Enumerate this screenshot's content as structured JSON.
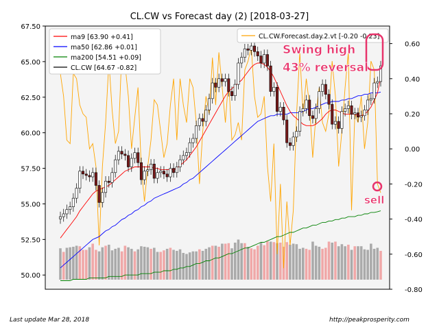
{
  "chart_data": {
    "type": "line",
    "title": "CL.CW vs Forecast day (2)  [2018-03-27]",
    "footer_left": "Last update Mar 28, 2018",
    "footer_right": "http://peakprosperity.com",
    "left_axis": {
      "ylim": [
        49.0,
        67.5
      ],
      "ticks": [
        "67.50",
        "65.00",
        "62.50",
        "60.00",
        "57.50",
        "55.00",
        "52.50",
        "50.00"
      ]
    },
    "right_axis": {
      "ylim": [
        -0.8,
        0.7
      ],
      "ticks": [
        "0.60",
        "0.40",
        "0.20",
        "0.00",
        "-0.20",
        "-0.40",
        "-0.60",
        "-0.80"
      ]
    },
    "legend_main": {
      "placement": "top-left",
      "entries": [
        {
          "label": "ma9 [63.90 +0.41]",
          "color": "#ff0000"
        },
        {
          "label": "ma50 [62.86 +0.01]",
          "color": "#0000ff"
        },
        {
          "label": "ma200 [54.51 +0.09]",
          "color": "#008000"
        },
        {
          "label": "CL.CW [64.67 -0.82]",
          "color": "#000000"
        }
      ]
    },
    "legend_forecast": {
      "placement": "top-right",
      "entries": [
        {
          "label": "CL.CW.Forecast.day.2.vt [-0.20 -0.23]",
          "color": "#ffa500"
        }
      ]
    },
    "annotations": {
      "swing": "Swing high",
      "reversal": "43% reversal",
      "sell": "sell"
    },
    "colors": {
      "annotation": "#e8336b",
      "forecast": "#ffa500",
      "volume_up": "#aaaaaa",
      "volume_down": "#f0a8a8",
      "plot_bg": "#f4f4f4"
    },
    "series": {
      "close": [
        54.1,
        54.3,
        54.6,
        54.8,
        55.4,
        56.1,
        57.3,
        57.1,
        57.0,
        56.9,
        57.2,
        56.3,
        55.1,
        55.8,
        56.6,
        56.5,
        57.2,
        58.1,
        58.7,
        58.5,
        58.4,
        57.6,
        58.2,
        58.6,
        57.9,
        56.7,
        57.3,
        57.4,
        57.8,
        56.8,
        57.2,
        57.3,
        57.1,
        56.9,
        57.5,
        57.2,
        57.6,
        58.1,
        58.4,
        58.6,
        59.3,
        59.6,
        60.5,
        61.0,
        60.8,
        61.6,
        62.4,
        63.5,
        63.2,
        63.8,
        63.6,
        63.8,
        62.9,
        62.6,
        63.4,
        64.9,
        65.3,
        65.9,
        65.8,
        66.1,
        65.7,
        65.4,
        64.9,
        65.5,
        64.7,
        62.9,
        63.2,
        61.5,
        61.8,
        60.9,
        59.3,
        59.1,
        59.7,
        60.1,
        61.5,
        61.7,
        62.3,
        61.2,
        61.0,
        61.7,
        62.9,
        63.4,
        62.7,
        62.0,
        60.6,
        60.8,
        60.3,
        61.5,
        61.7,
        61.9,
        61.3,
        61.4,
        61.1,
        61.2,
        61.6,
        62.3,
        62.4,
        63.5,
        63.6,
        64.7
      ],
      "ma9": [
        52.6,
        52.9,
        53.2,
        53.5,
        53.8,
        54.1,
        54.5,
        54.8,
        55.1,
        55.4,
        55.7,
        55.9,
        56.0,
        56.1,
        56.2,
        56.3,
        56.5,
        56.7,
        56.9,
        57.1,
        57.3,
        57.4,
        57.5,
        57.6,
        57.6,
        57.6,
        57.6,
        57.6,
        57.6,
        57.5,
        57.5,
        57.4,
        57.4,
        57.4,
        57.4,
        57.4,
        57.5,
        57.7,
        57.9,
        58.1,
        58.4,
        58.7,
        59.0,
        59.4,
        59.8,
        60.2,
        60.6,
        61.0,
        61.4,
        61.8,
        62.2,
        62.6,
        62.9,
        63.1,
        63.3,
        63.5,
        63.7,
        64.0,
        64.3,
        64.6,
        64.8,
        64.9,
        64.9,
        64.8,
        64.6,
        64.3,
        63.9,
        63.4,
        62.9,
        62.4,
        61.9,
        61.5,
        61.2,
        61.0,
        60.8,
        60.6,
        60.5,
        60.5,
        60.5,
        60.6,
        60.8,
        61.0,
        61.3,
        61.5,
        61.6,
        61.6,
        61.5,
        61.4,
        61.3,
        61.3,
        61.3,
        61.3,
        61.2,
        61.2,
        61.3,
        61.5,
        61.8,
        62.3,
        62.8,
        63.9
      ],
      "ma50": [
        50.5,
        50.7,
        50.9,
        51.1,
        51.3,
        51.5,
        51.7,
        51.9,
        52.1,
        52.3,
        52.5,
        52.6,
        52.7,
        52.9,
        53.1,
        53.2,
        53.4,
        53.5,
        53.7,
        53.9,
        54.0,
        54.2,
        54.3,
        54.5,
        54.6,
        54.8,
        54.9,
        55.1,
        55.2,
        55.4,
        55.5,
        55.6,
        55.7,
        55.8,
        55.9,
        56.0,
        56.1,
        56.2,
        56.4,
        56.5,
        56.7,
        56.8,
        57.0,
        57.2,
        57.4,
        57.6,
        57.8,
        58.0,
        58.2,
        58.4,
        58.6,
        58.8,
        59.0,
        59.2,
        59.4,
        59.6,
        59.8,
        60.0,
        60.2,
        60.4,
        60.6,
        60.8,
        60.9,
        61.0,
        61.1,
        61.2,
        61.2,
        61.3,
        61.3,
        61.3,
        61.3,
        61.4,
        61.4,
        61.4,
        61.4,
        61.5,
        61.6,
        61.7,
        61.7,
        61.8,
        61.9,
        62.0,
        62.1,
        62.1,
        62.2,
        62.2,
        62.2,
        62.3,
        62.3,
        62.4,
        62.4,
        62.5,
        62.6,
        62.6,
        62.7,
        62.7,
        62.8,
        62.8,
        62.8,
        62.86
      ],
      "ma200": [
        49.6,
        49.6,
        49.6,
        49.6,
        49.7,
        49.7,
        49.7,
        49.7,
        49.7,
        49.8,
        49.8,
        49.8,
        49.8,
        49.8,
        49.8,
        49.9,
        49.9,
        49.9,
        49.9,
        49.9,
        50.0,
        50.0,
        50.0,
        50.0,
        50.0,
        50.1,
        50.1,
        50.1,
        50.1,
        50.2,
        50.2,
        50.2,
        50.3,
        50.3,
        50.3,
        50.4,
        50.4,
        50.5,
        50.5,
        50.6,
        50.6,
        50.7,
        50.8,
        50.8,
        50.9,
        51.0,
        51.0,
        51.1,
        51.2,
        51.2,
        51.3,
        51.4,
        51.5,
        51.5,
        51.6,
        51.7,
        51.8,
        51.9,
        51.9,
        52.0,
        52.1,
        52.2,
        52.3,
        52.3,
        52.4,
        52.5,
        52.6,
        52.7,
        52.7,
        52.8,
        52.9,
        53.0,
        53.0,
        53.1,
        53.2,
        53.3,
        53.3,
        53.4,
        53.5,
        53.5,
        53.6,
        53.7,
        53.7,
        53.8,
        53.8,
        53.9,
        53.9,
        54.0,
        54.0,
        54.1,
        54.1,
        54.1,
        54.2,
        54.2,
        54.3,
        54.3,
        54.4,
        54.4,
        54.45,
        54.51
      ],
      "forecast": [
        0.43,
        0.3,
        0.05,
        0.03,
        0.43,
        0.4,
        0.25,
        0.2,
        0.18,
        0.0,
        0.03,
        -0.1,
        -0.55,
        -0.1,
        0.15,
        0.5,
        0.22,
        0.03,
        0.1,
        0.55,
        0.48,
        0.3,
        0.0,
        0.18,
        0.35,
        -0.1,
        -0.3,
        -0.1,
        0.05,
        0.28,
        0.25,
        0.1,
        -0.05,
        0.03,
        0.25,
        0.4,
        0.05,
        0.4,
        0.25,
        0.15,
        0.4,
        0.35,
        0.15,
        -0.2,
        0.1,
        0.3,
        0.2,
        0.52,
        0.25,
        0.55,
        0.35,
        0.15,
        0.4,
        0.05,
        0.08,
        0.15,
        0.05,
        0.45,
        0.5,
        0.58,
        0.3,
        0.18,
        0.2,
        0.3,
        -0.1,
        -0.3,
        0.03,
        -0.6,
        -0.2,
        -0.68,
        -0.3,
        -0.55,
        -0.35,
        0.2,
        0.55,
        0.2,
        0.4,
        0.25,
        -0.05,
        0.2,
        0.35,
        0.15,
        0.1,
        0.2,
        0.5,
        0.3,
        -0.1,
        0.1,
        0.35,
        0.55,
        -0.35,
        0.2,
        0.15,
        0.3,
        0.0,
        0.15,
        0.5,
        0.45,
        -0.2,
        -0.25
      ],
      "volume": [
        61,
        54,
        62,
        63,
        64,
        66,
        65,
        58,
        58,
        63,
        70,
        58,
        55,
        63,
        66,
        68,
        57,
        60,
        62,
        55,
        66,
        63,
        60,
        55,
        59,
        65,
        64,
        63,
        60,
        62,
        54,
        54,
        57,
        60,
        62,
        58,
        56,
        59,
        52,
        50,
        53,
        55,
        55,
        59,
        56,
        60,
        63,
        66,
        66,
        64,
        70,
        70,
        71,
        61,
        72,
        78,
        71,
        71,
        64,
        61,
        59,
        66,
        72,
        67,
        75,
        74,
        73,
        71,
        72,
        64,
        73,
        68,
        70,
        69,
        60,
        62,
        60,
        58,
        74,
        66,
        64,
        60,
        62,
        74,
        72,
        74,
        65,
        69,
        65,
        68,
        58,
        65,
        65,
        65,
        59,
        58,
        70,
        60,
        62,
        56
      ],
      "volume_up": [
        1,
        0,
        1,
        1,
        1,
        1,
        0,
        0,
        0,
        1,
        0,
        0,
        1,
        1,
        0,
        1,
        1,
        1,
        1,
        0,
        0,
        1,
        1,
        0,
        1,
        1,
        1,
        1,
        0,
        1,
        1,
        0,
        0,
        1,
        0,
        1,
        1,
        1,
        1,
        1,
        1,
        1,
        1,
        0,
        1,
        1,
        1,
        0,
        1,
        0,
        1,
        0,
        0,
        1,
        1,
        1,
        1,
        0,
        1,
        0,
        0,
        0,
        1,
        0,
        0,
        1,
        0,
        1,
        0,
        0,
        0,
        1,
        1,
        1,
        1,
        1,
        0,
        0,
        1,
        1,
        1,
        0,
        0,
        0,
        1,
        0,
        1,
        1,
        1,
        0,
        1,
        0,
        1,
        1,
        1,
        1,
        1,
        1,
        1,
        0
      ]
    }
  }
}
